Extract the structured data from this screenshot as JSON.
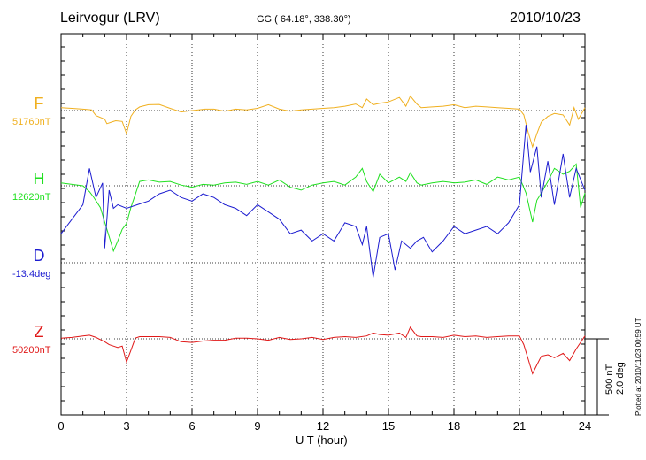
{
  "header": {
    "station": "Leirvogur (LRV)",
    "coords": "GG ( 64.18°, 338.30°)",
    "date": "2010/10/23"
  },
  "chart_data": {
    "type": "line",
    "xlabel": "U T (hour)",
    "xlim": [
      0,
      24
    ],
    "xticks": [
      "0",
      "3",
      "6",
      "9",
      "12",
      "15",
      "18",
      "21",
      "24"
    ],
    "scale": {
      "nT": "500 nT",
      "deg": "2.0 deg"
    },
    "plotted": "Plotted at 2010/11/23 00:59 UT",
    "grid": true,
    "series": [
      {
        "name": "F",
        "baseline_label": "51760nT",
        "color": "#f0b020",
        "unit": "nT",
        "x": [
          0,
          0.5,
          1,
          1.4,
          1.6,
          2.0,
          2.1,
          2.3,
          2.5,
          2.8,
          3.0,
          3.2,
          3.4,
          3.6,
          4.0,
          4.5,
          5.0,
          5.5,
          6.0,
          6.3,
          6.6,
          7.0,
          7.5,
          8.0,
          8.5,
          9.0,
          9.5,
          10.0,
          10.5,
          11.0,
          11.5,
          12.0,
          12.5,
          13.0,
          13.5,
          13.8,
          14.0,
          14.3,
          14.6,
          15.0,
          15.5,
          15.8,
          16.0,
          16.3,
          16.5,
          17.0,
          17.5,
          18.0,
          18.5,
          19.0,
          19.5,
          20.0,
          20.5,
          21.0,
          21.2,
          21.4,
          21.6,
          21.8,
          22.0,
          22.3,
          22.6,
          23.0,
          23.3,
          23.5,
          23.7,
          24.0
        ],
        "y": [
          20,
          15,
          10,
          5,
          -35,
          -60,
          -90,
          -80,
          -70,
          -75,
          -160,
          -40,
          5,
          25,
          40,
          42,
          15,
          -10,
          0,
          5,
          10,
          10,
          -5,
          10,
          5,
          15,
          40,
          10,
          -5,
          5,
          10,
          15,
          20,
          30,
          45,
          20,
          80,
          40,
          50,
          60,
          90,
          30,
          100,
          45,
          20,
          25,
          30,
          40,
          20,
          30,
          25,
          20,
          15,
          10,
          -30,
          -150,
          -250,
          -160,
          -80,
          -40,
          -20,
          -30,
          -100,
          20,
          -60,
          20
        ]
      },
      {
        "name": "H",
        "baseline_label": "12620nT",
        "color": "#20e020",
        "unit": "nT",
        "x": [
          0,
          0.5,
          1,
          1.3,
          1.5,
          1.8,
          2.0,
          2.2,
          2.4,
          2.6,
          2.8,
          3.0,
          3.2,
          3.4,
          3.6,
          4.0,
          4.5,
          5.0,
          5.5,
          6.0,
          6.5,
          7.0,
          7.5,
          8.0,
          8.5,
          9.0,
          9.5,
          10.0,
          10.5,
          11.0,
          11.5,
          12.0,
          12.5,
          13.0,
          13.5,
          13.8,
          14.0,
          14.3,
          14.6,
          15.0,
          15.5,
          15.8,
          16.0,
          16.3,
          16.5,
          17.0,
          17.5,
          18.0,
          18.5,
          19.0,
          19.5,
          20.0,
          20.5,
          21.0,
          21.3,
          21.6,
          21.8,
          22.0,
          22.3,
          22.6,
          23.0,
          23.3,
          23.6,
          23.8,
          24.0
        ],
        "y": [
          20,
          10,
          0,
          -40,
          -80,
          -150,
          -250,
          -350,
          -450,
          -380,
          -300,
          -260,
          -150,
          -60,
          30,
          40,
          25,
          30,
          5,
          -10,
          10,
          5,
          20,
          25,
          10,
          30,
          5,
          40,
          -10,
          -30,
          5,
          20,
          30,
          5,
          60,
          120,
          30,
          -40,
          80,
          20,
          60,
          30,
          90,
          20,
          5,
          20,
          30,
          20,
          25,
          40,
          10,
          60,
          40,
          60,
          -50,
          -250,
          -100,
          -50,
          30,
          120,
          80,
          100,
          150,
          -150,
          -50
        ],
        "note": "baseline 12620 nT"
      },
      {
        "name": "D",
        "baseline_label": "-13.4deg",
        "color": "#1c1cd0",
        "unit": "deg",
        "x": [
          0,
          0.5,
          1,
          1.3,
          1.6,
          1.9,
          2.0,
          2.2,
          2.4,
          2.6,
          3.0,
          3.5,
          4.0,
          4.5,
          5.0,
          5.5,
          6.0,
          6.5,
          7.0,
          7.5,
          8.0,
          8.5,
          9.0,
          9.5,
          10.0,
          10.5,
          11.0,
          11.5,
          12.0,
          12.5,
          13.0,
          13.5,
          13.8,
          14.0,
          14.3,
          14.6,
          15.0,
          15.3,
          15.6,
          16.0,
          16.3,
          16.6,
          17.0,
          17.5,
          18.0,
          18.5,
          19.0,
          19.5,
          20.0,
          20.5,
          21.0,
          21.3,
          21.5,
          21.8,
          22.0,
          22.3,
          22.6,
          23.0,
          23.3,
          23.6,
          24.0
        ],
        "y": [
          0.8,
          1.2,
          1.6,
          2.6,
          1.8,
          2.2,
          0.4,
          2.0,
          1.5,
          1.6,
          1.5,
          1.6,
          1.7,
          1.9,
          2.0,
          1.8,
          1.7,
          1.9,
          1.8,
          1.6,
          1.5,
          1.3,
          1.6,
          1.4,
          1.2,
          0.8,
          0.9,
          0.6,
          0.8,
          0.6,
          1.1,
          1.0,
          0.5,
          1.0,
          -0.4,
          0.7,
          0.8,
          -0.2,
          0.6,
          0.4,
          0.6,
          0.7,
          0.3,
          0.6,
          1.0,
          0.8,
          0.9,
          1.0,
          0.8,
          1.1,
          1.6,
          3.8,
          2.5,
          3.2,
          1.8,
          2.8,
          1.6,
          3.0,
          1.8,
          2.6,
          2.0
        ]
      },
      {
        "name": "Z",
        "baseline_label": "50200nT",
        "color": "#e01818",
        "unit": "nT",
        "x": [
          0,
          0.5,
          1,
          1.3,
          1.6,
          2.0,
          2.2,
          2.4,
          2.6,
          2.8,
          3.0,
          3.2,
          3.4,
          3.6,
          4.0,
          4.5,
          5.0,
          5.5,
          6.0,
          6.5,
          7.0,
          7.5,
          8.0,
          8.5,
          9.0,
          9.5,
          10.0,
          10.5,
          11.0,
          11.5,
          12.0,
          12.5,
          13.0,
          13.5,
          14.0,
          14.3,
          14.6,
          15.0,
          15.5,
          15.8,
          16.0,
          16.3,
          16.5,
          17.0,
          17.5,
          18.0,
          18.5,
          19.0,
          19.5,
          20.0,
          20.5,
          21.0,
          21.2,
          21.4,
          21.6,
          21.8,
          22.0,
          22.3,
          22.6,
          23.0,
          23.3,
          23.6,
          24.0
        ],
        "y": [
          5,
          10,
          20,
          25,
          10,
          -20,
          -40,
          -50,
          -60,
          -50,
          -160,
          -80,
          5,
          15,
          15,
          15,
          10,
          -20,
          -25,
          -15,
          -10,
          -10,
          5,
          5,
          0,
          -10,
          10,
          -5,
          0,
          10,
          -5,
          10,
          15,
          10,
          20,
          40,
          30,
          25,
          40,
          10,
          80,
          20,
          15,
          15,
          10,
          25,
          15,
          20,
          10,
          15,
          20,
          20,
          -40,
          -140,
          -240,
          -180,
          -120,
          -110,
          -130,
          -100,
          -150,
          -70,
          20
        ]
      }
    ]
  }
}
